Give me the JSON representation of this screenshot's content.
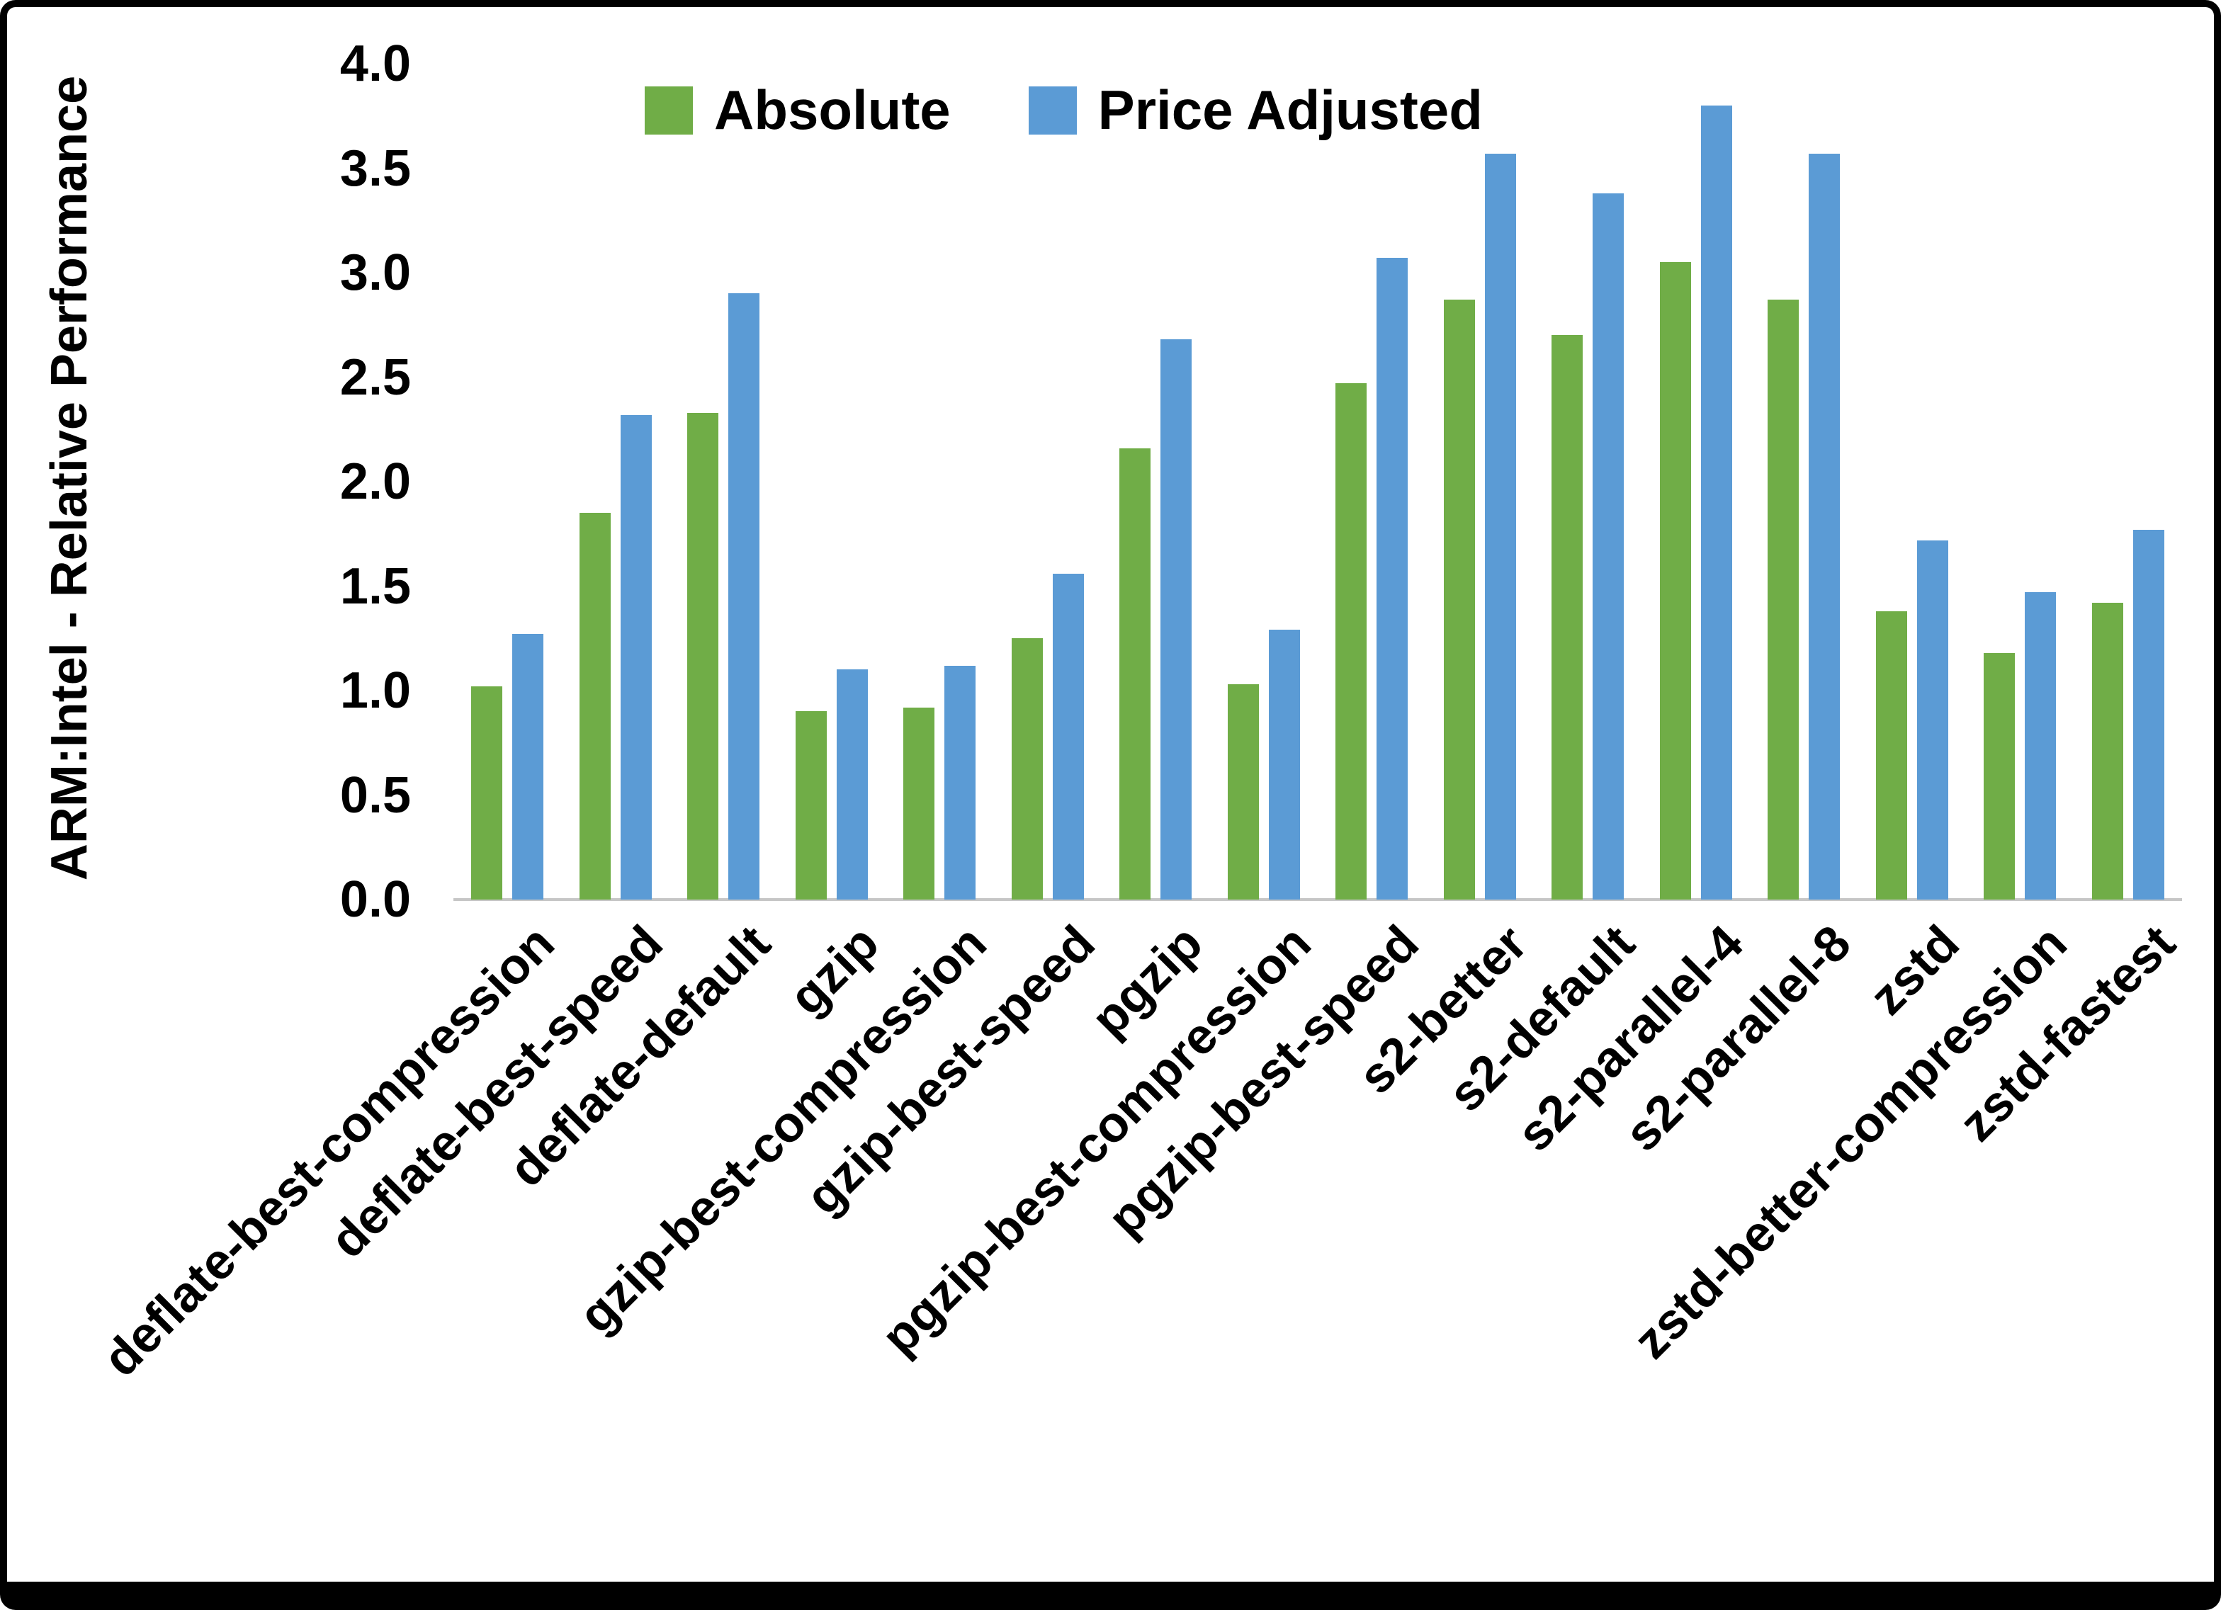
{
  "figure": {
    "background": "#ffffff",
    "border_color": "#000000"
  },
  "chart_data": {
    "type": "bar",
    "title": "",
    "xlabel": "",
    "ylabel": "ARM:Intel - Relative Performance",
    "ylim": [
      0.0,
      4.0
    ],
    "ytick_step": 0.5,
    "yticks": [
      "0.0",
      "0.5",
      "1.0",
      "1.5",
      "2.0",
      "2.5",
      "3.0",
      "3.5",
      "4.0"
    ],
    "grid": false,
    "legend_position": "top-center",
    "categories": [
      "deflate-best-compression",
      "deflate-best-speed",
      "deflate-default",
      "gzip",
      "gzip-best-compression",
      "gzip-best-speed",
      "pgzip",
      "pgzip-best-compression",
      "pgzip-best-speed",
      "s2-better",
      "s2-default",
      "s2-parallel-4",
      "s2-parallel-8",
      "zstd",
      "zstd-better-compression",
      "zstd-fastest"
    ],
    "series": [
      {
        "name": "Absolute",
        "color": "#70AD47",
        "values": [
          1.02,
          1.85,
          2.33,
          0.9,
          0.92,
          1.25,
          2.16,
          1.03,
          2.47,
          2.87,
          2.7,
          3.05,
          2.87,
          1.38,
          1.18,
          1.42
        ]
      },
      {
        "name": "Price Adjusted",
        "color": "#5B9BD5",
        "values": [
          1.27,
          2.32,
          2.9,
          1.1,
          1.12,
          1.56,
          2.68,
          1.29,
          3.07,
          3.57,
          3.38,
          3.8,
          3.57,
          1.72,
          1.47,
          1.77
        ]
      }
    ]
  }
}
